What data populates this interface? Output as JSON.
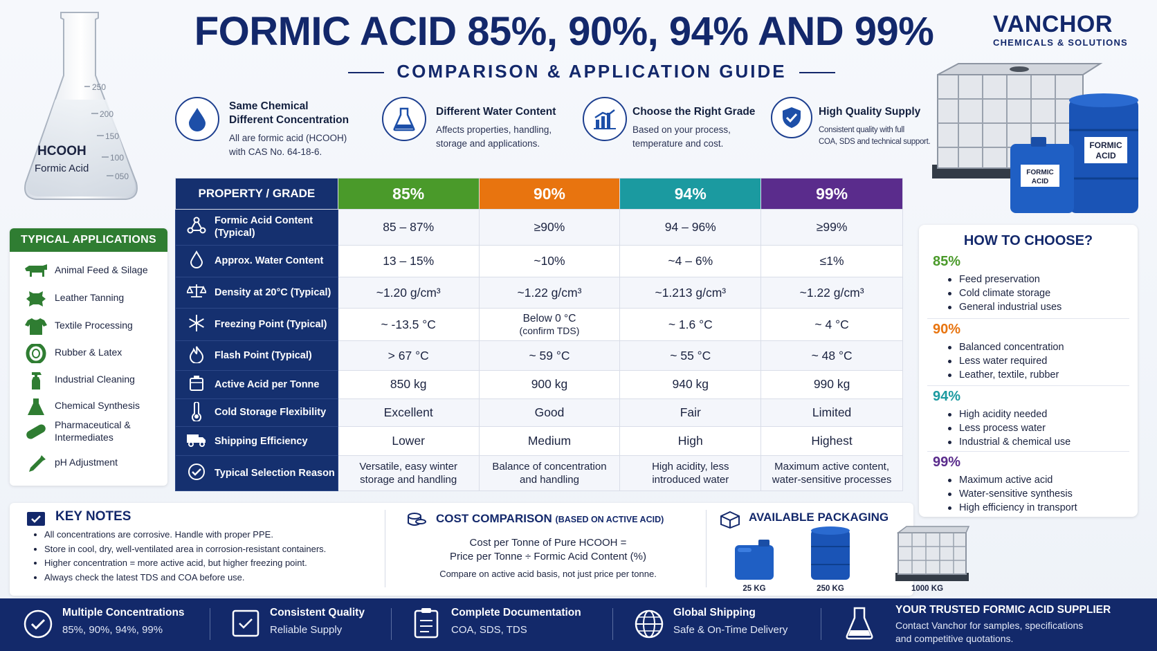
{
  "flask": {
    "formula": "HCOOH",
    "name": "Formic Acid",
    "marks": [
      "250",
      "200",
      "150",
      "100",
      "050"
    ]
  },
  "title": "FORMIC ACID 85%, 90%, 94% AND 99%",
  "subtitle": "COMPARISON & APPLICATION GUIDE",
  "logo": {
    "main_a": "VANCHOR",
    "sub": "CHEMICALS & SOLUTIONS"
  },
  "features": [
    {
      "icon": "water-drop-icon",
      "heading_1": "Same Chemical",
      "heading_2": "Different Concentration",
      "desc_1": "All are formic acid (HCOOH)",
      "desc_2": "with CAS No. 64-18-6."
    },
    {
      "icon": "flask-icon",
      "heading": "Different Water Content",
      "desc_1": "Affects properties, handling,",
      "desc_2": "storage and applications."
    },
    {
      "icon": "bar-chart-icon",
      "heading": "Choose the Right Grade",
      "desc_1": "Based on your process,",
      "desc_2": "temperature and cost."
    },
    {
      "icon": "shield-check-icon",
      "heading": "High Quality Supply",
      "desc_1": "Consistent quality with full",
      "desc_2": "COA, SDS and technical support."
    }
  ],
  "product_labels": {
    "drum": "FORMIC\nACID",
    "jerrycan": "FORMIC\nACID",
    "drum_1": "FORMIC",
    "drum_2": "ACID"
  },
  "table": {
    "header": "PROPERTY / GRADE",
    "grades": [
      {
        "label": "85%",
        "color": "#4a9a2a"
      },
      {
        "label": "90%",
        "color": "#e8740f"
      },
      {
        "label": "94%",
        "color": "#1b9aa0"
      },
      {
        "label": "99%",
        "color": "#5a2c8c"
      }
    ],
    "rows": [
      {
        "icon": "molecule-icon",
        "label_1": "Formic Acid Content",
        "label_2": "(Typical)",
        "values": [
          "85 – 87%",
          "≥90%",
          "94 – 96%",
          "≥99%"
        ]
      },
      {
        "icon": "water-drop-icon",
        "label_1": "Approx. Water Content",
        "label_2": "",
        "values": [
          "13 – 15%",
          "~10%",
          "~4 – 6%",
          "≤1%"
        ]
      },
      {
        "icon": "scale-icon",
        "label_1": "Density at 20°C (Typical)",
        "label_2": "",
        "values": [
          "~1.20 g/cm³",
          "~1.22 g/cm³",
          "~1.213 g/cm³",
          "~1.22 g/cm³"
        ]
      },
      {
        "icon": "snowflake-icon",
        "label_1": "Freezing Point (Typical)",
        "label_2": "",
        "values": [
          "~ -13.5 °C",
          "Below 0 °C",
          "~ 1.6 °C",
          "~ 4 °C"
        ],
        "note": "(confirm TDS)"
      },
      {
        "icon": "flame-icon",
        "label_1": "Flash Point (Typical)",
        "label_2": "",
        "values": [
          "> 67 °C",
          "~ 59 °C",
          "~ 55 °C",
          "~ 48 °C"
        ]
      },
      {
        "icon": "container-icon",
        "label_1": "Active Acid per Tonne",
        "label_2": "",
        "values": [
          "850 kg",
          "900 kg",
          "940 kg",
          "990 kg"
        ]
      },
      {
        "icon": "thermometer-icon",
        "label_1": "Cold Storage Flexibility",
        "label_2": "",
        "values": [
          "Excellent",
          "Good",
          "Fair",
          "Limited"
        ]
      },
      {
        "icon": "truck-icon",
        "label_1": "Shipping Efficiency",
        "label_2": "",
        "values": [
          "Lower",
          "Medium",
          "High",
          "Highest"
        ]
      },
      {
        "icon": "check-circle-icon",
        "label_1": "Typical Selection Reason",
        "label_2": "",
        "values_1": [
          "Versatile, easy winter",
          "Balance of concentration",
          "High acidity, less",
          "Maximum active content,"
        ],
        "values_2": [
          "storage and handling",
          "and handling",
          "introduced water",
          "water-sensitive processes"
        ]
      }
    ]
  },
  "applications": {
    "header": "TYPICAL APPLICATIONS",
    "items": [
      {
        "icon": "cow-icon",
        "label_1": "Animal Feed & Silage",
        "label_2": ""
      },
      {
        "icon": "leather-hide-icon",
        "label_1": "Leather Tanning",
        "label_2": ""
      },
      {
        "icon": "tshirt-icon",
        "label_1": "Textile Processing",
        "label_2": ""
      },
      {
        "icon": "tire-icon",
        "label_1": "Rubber & Latex",
        "label_2": ""
      },
      {
        "icon": "spray-bottle-icon",
        "label_1": "Industrial Cleaning",
        "label_2": ""
      },
      {
        "icon": "flask-icon",
        "label_1": "Chemical Synthesis",
        "label_2": ""
      },
      {
        "icon": "pill-icon",
        "label_1": "Pharmaceutical &",
        "label_2": "Intermediates"
      },
      {
        "icon": "dropper-icon",
        "label_1": "pH Adjustment",
        "label_2": ""
      }
    ]
  },
  "how_to_choose": {
    "header": "HOW TO CHOOSE?",
    "groups": [
      {
        "grade": "85%",
        "color": "#4a9a2a",
        "items": [
          "Feed preservation",
          "Cold climate storage",
          "General industrial uses"
        ]
      },
      {
        "grade": "90%",
        "color": "#e8740f",
        "items": [
          "Balanced concentration",
          "Less water required",
          "Leather, textile, rubber"
        ]
      },
      {
        "grade": "94%",
        "color": "#1b9aa0",
        "items": [
          "High acidity needed",
          "Less process water",
          "Industrial & chemical use"
        ]
      },
      {
        "grade": "99%",
        "color": "#5a2c8c",
        "items": [
          "Maximum active acid",
          "Water-sensitive synthesis",
          "High efficiency in transport"
        ]
      }
    ]
  },
  "key_notes": {
    "header": "KEY NOTES",
    "items": [
      "All concentrations are corrosive. Handle with proper PPE.",
      "Store in cool, dry, well-ventilated area in corrosion-resistant containers.",
      "Higher concentration = more active acid, but higher freezing point.",
      "Always check the latest TDS and COA before use."
    ]
  },
  "cost": {
    "header": "COST COMPARISON",
    "header_note": "(BASED ON ACTIVE ACID)",
    "formula_1": "Cost per Tonne of Pure HCOOH =",
    "formula_2": "Price per Tonne ÷ Formic Acid Content (%)",
    "note": "Compare on active acid basis, not just price per tonne."
  },
  "packaging": {
    "header": "AVAILABLE PACKAGING",
    "items": [
      {
        "label": "25 KG"
      },
      {
        "label": "250 KG"
      },
      {
        "label": "1000 KG"
      }
    ]
  },
  "footer": [
    {
      "icon": "clock-check-icon",
      "heading": "Multiple Concentrations",
      "desc": "85%, 90%, 94%, 99%"
    },
    {
      "icon": "quality-certificate-icon",
      "heading": "Consistent Quality",
      "desc": "Reliable Supply"
    },
    {
      "icon": "clipboard-icon",
      "heading": "Complete Documentation",
      "desc": "COA, SDS, TDS"
    },
    {
      "icon": "globe-icon",
      "heading": "Global Shipping",
      "desc": "Safe & On-Time Delivery"
    },
    {
      "icon": "flask-icon",
      "heading": "YOUR TRUSTED FORMIC ACID SUPPLIER",
      "desc_1": "Contact Vanchor for samples, specifications",
      "desc_2": "and competitive quotations."
    }
  ]
}
